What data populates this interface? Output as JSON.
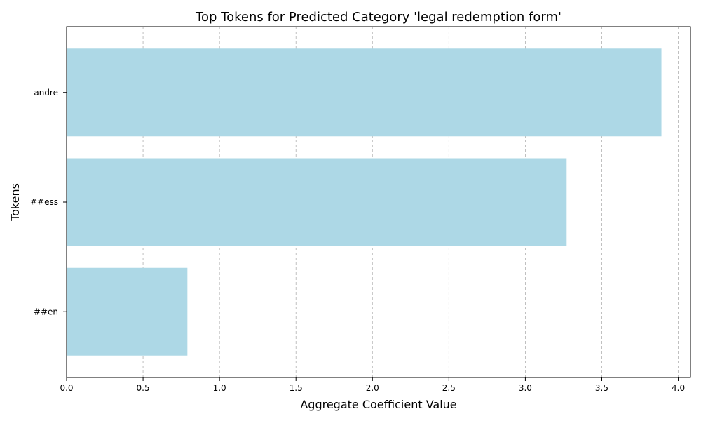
{
  "chart_data": {
    "type": "bar",
    "orientation": "horizontal",
    "title": "Top Tokens for Predicted Category 'legal redemption form'",
    "xlabel": "Aggregate Coefficient Value",
    "ylabel": "Tokens",
    "categories": [
      "andre",
      "##ess",
      "##en"
    ],
    "values": [
      3.89,
      3.27,
      0.79
    ],
    "xlim": [
      0,
      4.08
    ],
    "xticks": [
      0,
      0.5,
      1,
      1.5,
      2,
      2.5,
      3,
      3.5,
      4
    ],
    "xtick_labels": [
      "0.0",
      "0.5",
      "1.0",
      "1.5",
      "2.0",
      "2.5",
      "3.0",
      "3.5",
      "4.0"
    ],
    "grid": "x-axis dashed",
    "bar_color": "#add8e6"
  }
}
